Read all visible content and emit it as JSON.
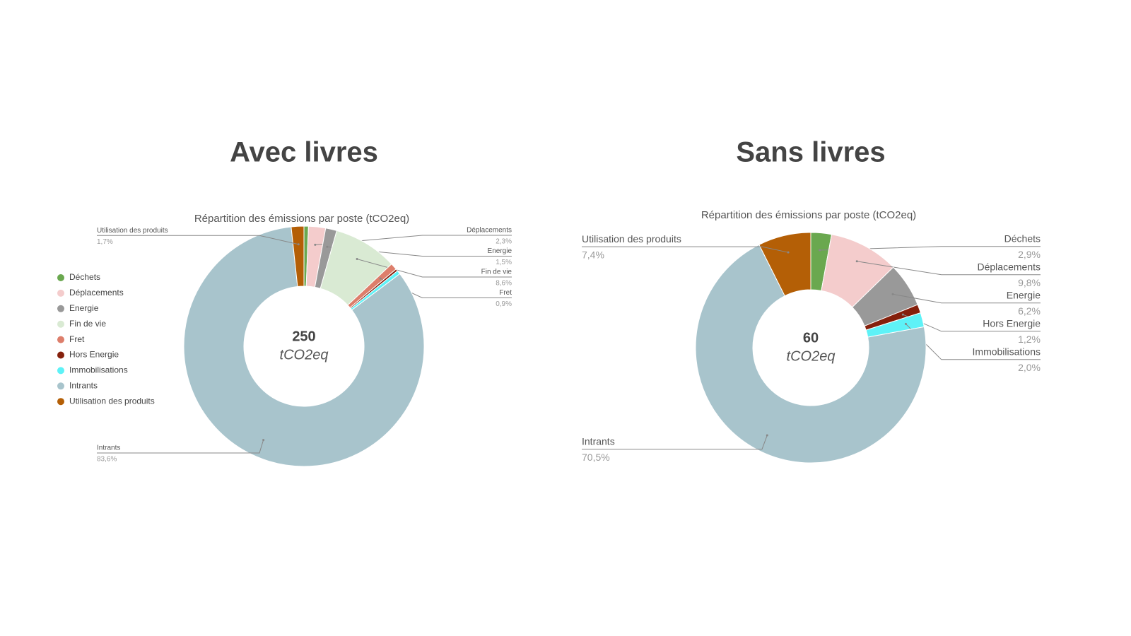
{
  "chart_data": [
    {
      "type": "pie",
      "heading": "Avec livres",
      "title": "Répartition des émissions par poste (tCO2eq)",
      "total": 250,
      "total_unit": "tCO2eq",
      "categories": [
        "Déchets",
        "Déplacements",
        "Energie",
        "Fin de vie",
        "Fret",
        "Hors Energie",
        "Immobilisations",
        "Intrants",
        "Utilisation des produits"
      ],
      "values": [
        0.6,
        2.3,
        1.5,
        8.6,
        0.9,
        0.3,
        0.5,
        83.6,
        1.7
      ],
      "value_labels": [
        null,
        "2,3%",
        "1,5%",
        "8,6%",
        "0,9%",
        null,
        null,
        "83,6%",
        "1,7%"
      ],
      "colors": [
        "#6aa84f",
        "#f4cccc",
        "#999999",
        "#d9ead3",
        "#dd7e6b",
        "#85200c",
        "#5ef2f7",
        "#a8c4cc",
        "#b45f06"
      ],
      "legend": "left"
    },
    {
      "type": "pie",
      "heading": "Sans livres",
      "title": "Répartition des émissions par poste (tCO2eq)",
      "total": 60,
      "total_unit": "tCO2eq",
      "categories": [
        "Déchets",
        "Déplacements",
        "Energie",
        "Hors Energie",
        "Immobilisations",
        "Intrants",
        "Utilisation des produits"
      ],
      "values": [
        2.9,
        9.8,
        6.2,
        1.2,
        2.0,
        70.5,
        7.4
      ],
      "value_labels": [
        "2,9%",
        "9,8%",
        "6,2%",
        "1,2%",
        "2,0%",
        "70,5%",
        "7,4%"
      ],
      "colors": [
        "#6aa84f",
        "#f4cccc",
        "#999999",
        "#85200c",
        "#5ef2f7",
        "#a8c4cc",
        "#b45f06"
      ],
      "legend": false
    }
  ]
}
